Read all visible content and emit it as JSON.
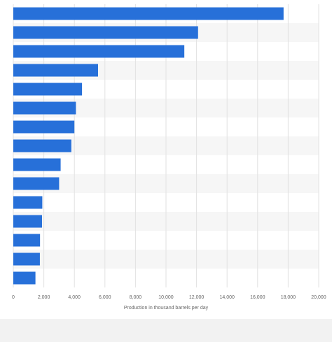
{
  "chart_data": {
    "type": "bar",
    "orientation": "horizontal",
    "categories": [
      "",
      "",
      "",
      "",
      "",
      "",
      "",
      "",
      "",
      "",
      "",
      "",
      "",
      "",
      ""
    ],
    "values": [
      17700,
      12100,
      11200,
      5550,
      4500,
      4100,
      4000,
      3800,
      3100,
      3000,
      1900,
      1880,
      1750,
      1740,
      1450
    ],
    "title": "",
    "xlabel": "Production in thousand barrels per day",
    "ylabel": "",
    "xlim": [
      0,
      20000
    ],
    "x_ticks": [
      0,
      2000,
      4000,
      6000,
      8000,
      10000,
      12000,
      14000,
      16000,
      18000,
      20000
    ],
    "x_tick_labels": [
      "0",
      "2,000",
      "4,000",
      "6,000",
      "8,000",
      "10,000",
      "12,000",
      "14,000",
      "16,000",
      "18,000",
      "20,000"
    ],
    "grid": true,
    "legend": "none",
    "bar_color": "#2770d9",
    "band_color": "#f6f6f6",
    "grid_color": "#e2e2e2"
  }
}
